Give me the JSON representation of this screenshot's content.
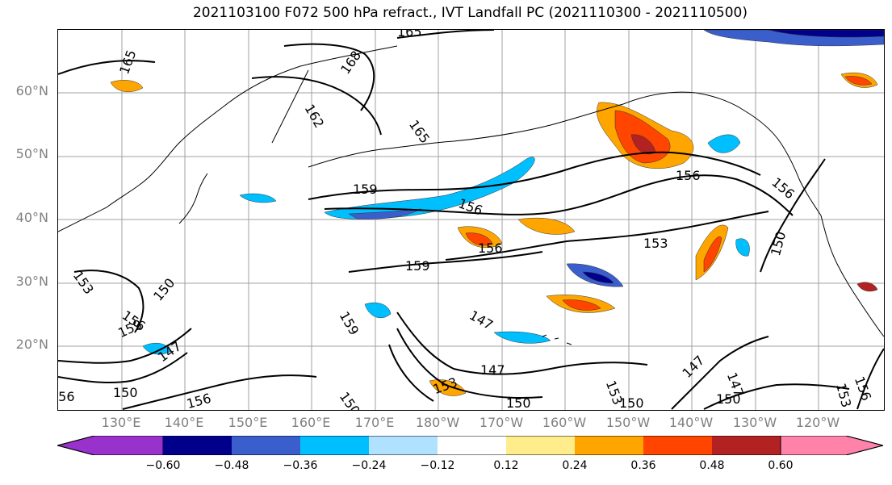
{
  "title": "2021103100 F072 500 hPa refract., IVT Landfall PC (2021110300 - 2021110500)",
  "latitude_labels": [
    "60°N",
    "50°N",
    "40°N",
    "30°N",
    "20°N"
  ],
  "longitude_labels": [
    "130°E",
    "140°E",
    "150°E",
    "160°E",
    "170°E",
    "180°W",
    "170°W",
    "160°W",
    "150°W",
    "140°W",
    "130°W",
    "120°W"
  ],
  "contour_labels": [
    "165",
    "165",
    "168",
    "162",
    "165",
    "159",
    "156",
    "156",
    "156",
    "153",
    "150",
    "159",
    "156",
    "153",
    "150",
    "156",
    "159",
    "147",
    "147",
    "150",
    "156",
    "159",
    "150",
    "147",
    "153",
    "150",
    "153",
    "147",
    "150",
    "147",
    "156",
    "153",
    "150",
    "156"
  ],
  "colorbar": {
    "tick_labels": [
      "−0.60",
      "−0.48",
      "−0.36",
      "−0.24",
      "−0.12",
      "0.12",
      "0.24",
      "0.36",
      "0.48",
      "0.60"
    ],
    "colors": [
      "#9932cc",
      "#00008b",
      "#3a5fcd",
      "#00bfff",
      "#b0e2ff",
      "#ffffff",
      "#ffec8b",
      "#ffa500",
      "#ff4500",
      "#b22222",
      "#ff82ab"
    ]
  },
  "colors": {
    "contour": "#000000",
    "coastline": "#000000",
    "grid": "#a0a0a0",
    "axis_label": "#808080"
  }
}
